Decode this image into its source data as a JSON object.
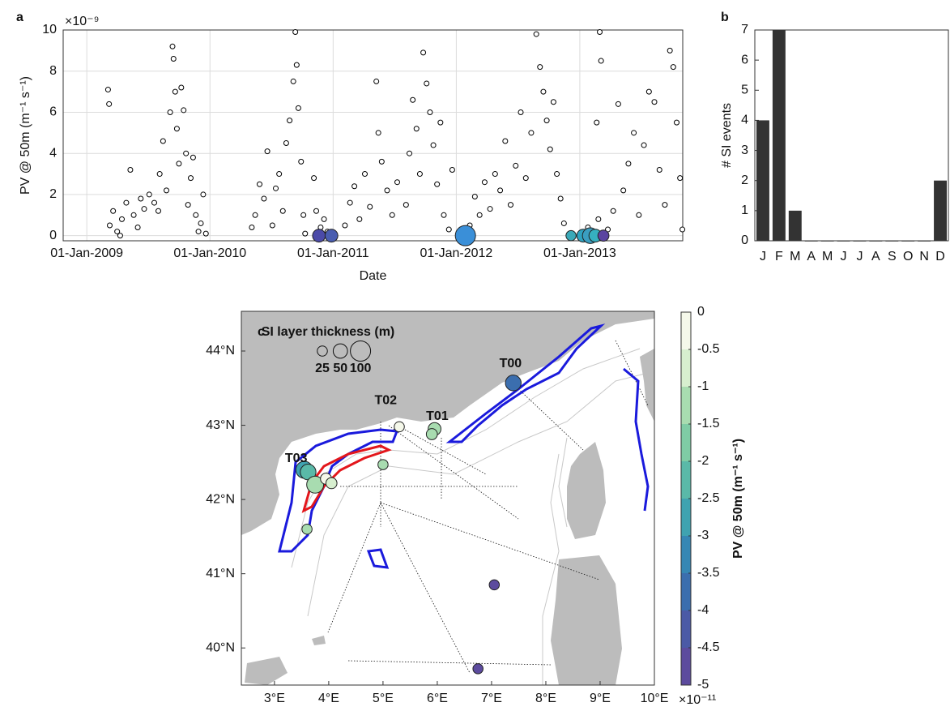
{
  "chart_data": [
    {
      "type": "scatter",
      "panel": "a",
      "xlabel": "Date",
      "ylabel": "PV @ 50m (m⁻¹ s⁻¹)",
      "y_exponent": "×10⁻⁹",
      "xlim": [
        "2008-10-23",
        "2013-11-02"
      ],
      "ylim": [
        -0.25,
        10
      ],
      "xticks": [
        {
          "value": "2009-01-01",
          "label": "01-Jan-2009"
        },
        {
          "value": "2010-01-01",
          "label": "01-Jan-2010"
        },
        {
          "value": "2011-01-01",
          "label": "01-Jan-2011"
        },
        {
          "value": "2012-01-01",
          "label": "01-Jan-2012"
        },
        {
          "value": "2013-01-01",
          "label": "01-Jan-2013"
        }
      ],
      "yticks": [
        0,
        2,
        4,
        6,
        8,
        10
      ],
      "grid": true,
      "series": [
        {
          "color": "#ffffff",
          "edgecolor": "#000000",
          "x": [
            "2009-03-05",
            "2009-03-08",
            "2009-03-10",
            "2009-03-20",
            "2009-04-01",
            "2009-04-10",
            "2009-04-15",
            "2009-04-28",
            "2009-05-10",
            "2009-05-20",
            "2009-06-01",
            "2009-06-10",
            "2009-06-20",
            "2009-07-05",
            "2009-07-20",
            "2009-08-01",
            "2009-08-05",
            "2009-08-15",
            "2009-08-25",
            "2009-09-05",
            "2009-09-12",
            "2009-09-15",
            "2009-09-20",
            "2009-09-25",
            "2009-10-01",
            "2009-10-08",
            "2009-10-15",
            "2009-10-22",
            "2009-10-28",
            "2009-11-05",
            "2009-11-12",
            "2009-11-20",
            "2009-11-28",
            "2009-12-05",
            "2009-12-12",
            "2009-12-20",
            "2010-05-05",
            "2010-05-15",
            "2010-05-28",
            "2010-06-10",
            "2010-06-20",
            "2010-07-05",
            "2010-07-15",
            "2010-07-25",
            "2010-08-05",
            "2010-08-15",
            "2010-08-25",
            "2010-09-05",
            "2010-09-11",
            "2010-09-15",
            "2010-09-20",
            "2010-09-28",
            "2010-10-05",
            "2010-10-10",
            "2010-11-05",
            "2010-11-12",
            "2010-11-25",
            "2010-12-05",
            "2010-12-15",
            "2011-02-05",
            "2011-02-20",
            "2011-03-05",
            "2011-03-20",
            "2011-04-05",
            "2011-04-20",
            "2011-05-09",
            "2011-05-15",
            "2011-05-25",
            "2011-06-10",
            "2011-06-25",
            "2011-07-10",
            "2011-08-05",
            "2011-08-15",
            "2011-08-25",
            "2011-09-05",
            "2011-09-15",
            "2011-09-25",
            "2011-10-05",
            "2011-10-15",
            "2011-10-25",
            "2011-11-05",
            "2011-11-15",
            "2011-11-25",
            "2011-12-10",
            "2011-12-20",
            "2012-02-10",
            "2012-02-25",
            "2012-03-10",
            "2012-03-25",
            "2012-04-10",
            "2012-04-25",
            "2012-05-10",
            "2012-05-25",
            "2012-06-10",
            "2012-06-25",
            "2012-07-10",
            "2012-07-25",
            "2012-08-10",
            "2012-08-25",
            "2012-09-05",
            "2012-09-15",
            "2012-09-25",
            "2012-10-05",
            "2012-10-15",
            "2012-10-25",
            "2012-11-05",
            "2012-11-15",
            "2013-01-25",
            "2013-02-20",
            "2013-02-25",
            "2013-03-01",
            "2013-03-05",
            "2013-03-25",
            "2013-04-10",
            "2013-04-25",
            "2013-05-10",
            "2013-05-25",
            "2013-06-10",
            "2013-06-25",
            "2013-07-10",
            "2013-07-25",
            "2013-08-10",
            "2013-08-25",
            "2013-09-10",
            "2013-09-25",
            "2013-10-05",
            "2013-10-15",
            "2013-10-25",
            "2013-11-01"
          ],
          "values": [
            7.1,
            6.4,
            0.5,
            1.2,
            0.2,
            0.0,
            0.8,
            1.6,
            3.2,
            1.0,
            0.4,
            1.8,
            1.3,
            2.0,
            1.6,
            1.2,
            3.0,
            4.6,
            2.2,
            6.0,
            9.2,
            8.6,
            7.0,
            5.2,
            3.5,
            7.2,
            6.1,
            4.0,
            1.5,
            2.8,
            3.8,
            1.0,
            0.2,
            0.6,
            2.0,
            0.1,
            0.4,
            1.0,
            2.5,
            1.8,
            4.1,
            0.5,
            2.3,
            3.0,
            1.2,
            4.5,
            5.6,
            7.5,
            9.9,
            8.3,
            6.2,
            3.6,
            1.0,
            0.1,
            2.8,
            1.2,
            0.4,
            0.8,
            0.2,
            0.5,
            1.6,
            2.4,
            0.8,
            3.0,
            1.4,
            7.5,
            5.0,
            3.6,
            2.2,
            1.0,
            2.6,
            1.5,
            4.0,
            6.6,
            5.2,
            3.0,
            8.9,
            7.4,
            6.0,
            4.4,
            2.5,
            5.5,
            1.0,
            0.3,
            3.2,
            0.5,
            1.9,
            1.0,
            2.6,
            1.3,
            3.0,
            2.2,
            4.6,
            1.5,
            3.4,
            6.0,
            2.8,
            5.0,
            9.8,
            8.2,
            7.0,
            5.6,
            4.2,
            6.5,
            3.0,
            1.8,
            0.6,
            0.4,
            5.5,
            0.8,
            9.9,
            8.5,
            0.3,
            1.2,
            6.4,
            2.2,
            3.5,
            5.0,
            1.0,
            4.4,
            7.0,
            6.5,
            3.2,
            1.5,
            9.0,
            8.2,
            5.5,
            2.8,
            0.3
          ]
        },
        {
          "x": [
            "2010-11-20",
            "2010-12-27",
            "2012-01-28",
            "2012-12-06",
            "2013-01-11",
            "2013-02-01",
            "2013-02-16",
            "2013-03-12"
          ],
          "values": [
            0,
            0,
            0,
            0,
            0,
            0,
            0,
            0
          ],
          "sizes": [
            40,
            40,
            100,
            25,
            40,
            60,
            40,
            30
          ],
          "colors": [
            "#4b4aa8",
            "#4a5db0",
            "#3a8fd8",
            "#3aa9b8",
            "#2fa3c0",
            "#3a9ec0",
            "#36b0c0",
            "#5a44a0"
          ]
        }
      ]
    },
    {
      "type": "bar",
      "panel": "b",
      "ylabel": "# SI events",
      "color": "#333333",
      "categories": [
        "J",
        "F",
        "M",
        "A",
        "M",
        "J",
        "J",
        "A",
        "S",
        "O",
        "N",
        "D"
      ],
      "values": [
        4,
        7,
        1,
        0,
        0,
        0,
        0,
        0,
        0,
        0,
        0,
        2
      ],
      "ylim": [
        0,
        7
      ],
      "yticks": [
        0,
        1,
        2,
        3,
        4,
        5,
        6,
        7
      ]
    },
    {
      "type": "map",
      "panel": "c",
      "xlim": [
        2.39,
        10
      ],
      "ylim": [
        39.5,
        44.535
      ],
      "xticks": [
        {
          "value": 3,
          "label": "3°E"
        },
        {
          "value": 4,
          "label": "4°E"
        },
        {
          "value": 5,
          "label": "5°E"
        },
        {
          "value": 6,
          "label": "6°E"
        },
        {
          "value": 7,
          "label": "7°E"
        },
        {
          "value": 8,
          "label": "8°E"
        },
        {
          "value": 9,
          "label": "9°E"
        },
        {
          "value": 10,
          "label": "10°E"
        }
      ],
      "yticks": [
        {
          "value": 40,
          "label": "40°N"
        },
        {
          "value": 41,
          "label": "41°N"
        },
        {
          "value": 42,
          "label": "42°N"
        },
        {
          "value": 43,
          "label": "43°N"
        },
        {
          "value": 44,
          "label": "44°N"
        }
      ],
      "points": {
        "lon": [
          7.4,
          5.95,
          5.9,
          5.3,
          3.55,
          3.62,
          3.75,
          3.95,
          4.05,
          5.0,
          3.6,
          7.05,
          6.75
        ],
        "lat": [
          43.57,
          42.95,
          42.88,
          42.98,
          42.4,
          42.37,
          42.2,
          42.28,
          42.22,
          42.47,
          41.6,
          40.85,
          39.72
        ],
        "pv": [
          -4,
          -1.2,
          -1.3,
          -0.3,
          -2.6,
          -2.1,
          -1.2,
          -0.2,
          -0.6,
          -1.3,
          -1.2,
          -4.7,
          -4.7
        ],
        "sizes": [
          60,
          40,
          30,
          25,
          70,
          60,
          70,
          30,
          30,
          25,
          25,
          25,
          25
        ]
      },
      "annotations": [
        {
          "text": "T00",
          "x": 7.35,
          "y": 43.83
        },
        {
          "text": "T01",
          "x": 6.0,
          "y": 43.12
        },
        {
          "text": "T02",
          "x": 5.05,
          "y": 43.33
        },
        {
          "text": "T03",
          "x": 3.4,
          "y": 42.55
        }
      ],
      "size_legend": {
        "title": "SI layer thickness (m)",
        "sizes": [
          25,
          50,
          100
        ]
      },
      "colorbar": {
        "label": "PV @ 50m (m⁻¹ s⁻¹)",
        "exponent": "×10⁻¹¹",
        "lim": [
          -5,
          0
        ],
        "ticks": [
          0,
          -0.5,
          -1,
          -1.5,
          -2,
          -2.5,
          -3,
          -3.5,
          -4,
          -4.5,
          -5
        ],
        "colors": [
          "#5c4b9e",
          "#4b5aa6",
          "#3b6eae",
          "#3687b4",
          "#3fa3b0",
          "#5ab9a8",
          "#7fcca5",
          "#a8dcb0",
          "#d7efcf",
          "#f5f8ea"
        ]
      }
    }
  ]
}
